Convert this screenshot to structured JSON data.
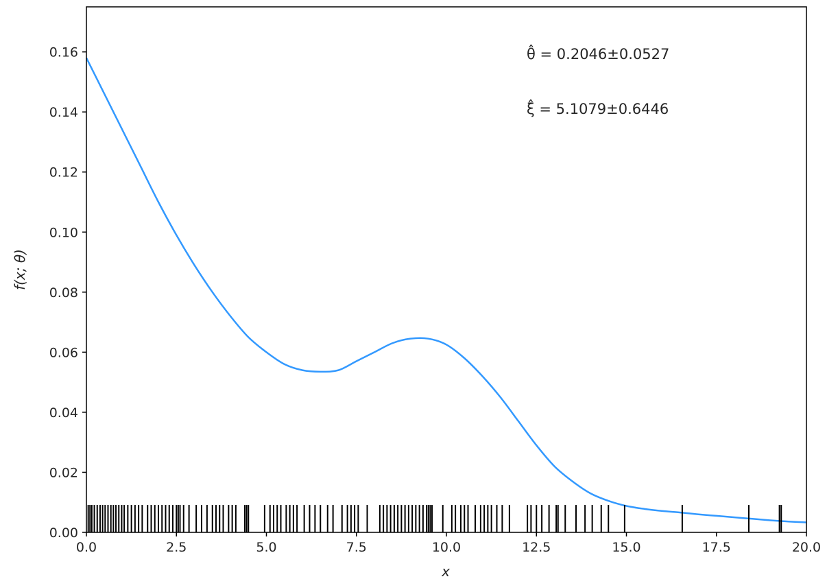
{
  "chart_data": {
    "type": "line",
    "xlabel": "x",
    "ylabel": "f(x; θ)",
    "xlim": [
      0,
      20
    ],
    "ylim": [
      0,
      0.175
    ],
    "grid": false,
    "x_ticks": [
      "0.0",
      "2.5",
      "5.0",
      "7.5",
      "10.0",
      "12.5",
      "15.0",
      "17.5",
      "20.0"
    ],
    "y_ticks": [
      "0.00",
      "0.02",
      "0.04",
      "0.06",
      "0.08",
      "0.10",
      "0.12",
      "0.14",
      "0.16"
    ],
    "annotations": [
      "θ̂ = 0.2046±0.0527",
      "ξ̂ = 5.1079±0.6446"
    ],
    "line_color": "#3399ff",
    "rug_color": "#000000",
    "series": [
      {
        "x": [
          0,
          0.5,
          1,
          1.5,
          2,
          2.5,
          3,
          3.5,
          4,
          4.5,
          5,
          5.5,
          6,
          6.5,
          7,
          7.5,
          8,
          8.5,
          9,
          9.5,
          10,
          10.5,
          11,
          11.5,
          12,
          12.5,
          13,
          13.5,
          14,
          14.5,
          15,
          15.5,
          16,
          16.5,
          17,
          17.5,
          18,
          18.5,
          19,
          19.5,
          20
        ],
        "y": [
          0.158,
          0.146,
          0.134,
          0.122,
          0.11,
          0.099,
          0.089,
          0.08,
          0.072,
          0.065,
          0.06,
          0.056,
          0.054,
          0.0535,
          0.054,
          0.057,
          0.06,
          0.063,
          0.0645,
          0.0645,
          0.0625,
          0.058,
          0.052,
          0.045,
          0.037,
          0.029,
          0.022,
          0.017,
          0.013,
          0.0105,
          0.0088,
          0.0078,
          0.0071,
          0.0066,
          0.006,
          0.0055,
          0.005,
          0.0045,
          0.004,
          0.0036,
          0.0033
        ]
      }
    ],
    "rug": [
      0.05,
      0.1,
      0.15,
      0.22,
      0.3,
      0.38,
      0.45,
      0.52,
      0.6,
      0.68,
      0.75,
      0.82,
      0.9,
      0.98,
      1.05,
      1.15,
      1.25,
      1.35,
      1.45,
      1.55,
      1.7,
      1.8,
      1.9,
      2.0,
      2.1,
      2.2,
      2.3,
      2.4,
      2.5,
      2.55,
      2.6,
      2.7,
      2.85,
      3.05,
      3.2,
      3.35,
      3.5,
      3.6,
      3.7,
      3.8,
      3.95,
      4.05,
      4.15,
      4.4,
      4.45,
      4.5,
      4.95,
      5.1,
      5.2,
      5.3,
      5.4,
      5.55,
      5.65,
      5.75,
      5.85,
      6.05,
      6.2,
      6.35,
      6.5,
      6.7,
      6.85,
      7.1,
      7.25,
      7.35,
      7.45,
      7.55,
      7.8,
      8.15,
      8.25,
      8.35,
      8.45,
      8.55,
      8.65,
      8.75,
      8.85,
      8.95,
      9.05,
      9.15,
      9.25,
      9.35,
      9.45,
      9.5,
      9.55,
      9.6,
      9.9,
      10.15,
      10.25,
      10.4,
      10.5,
      10.6,
      10.8,
      10.95,
      11.05,
      11.15,
      11.25,
      11.4,
      11.55,
      11.75,
      12.25,
      12.35,
      12.5,
      12.65,
      12.85,
      13.05,
      13.1,
      13.3,
      13.6,
      13.85,
      14.05,
      14.3,
      14.5,
      14.95,
      16.55,
      18.4,
      19.25,
      19.3
    ]
  }
}
